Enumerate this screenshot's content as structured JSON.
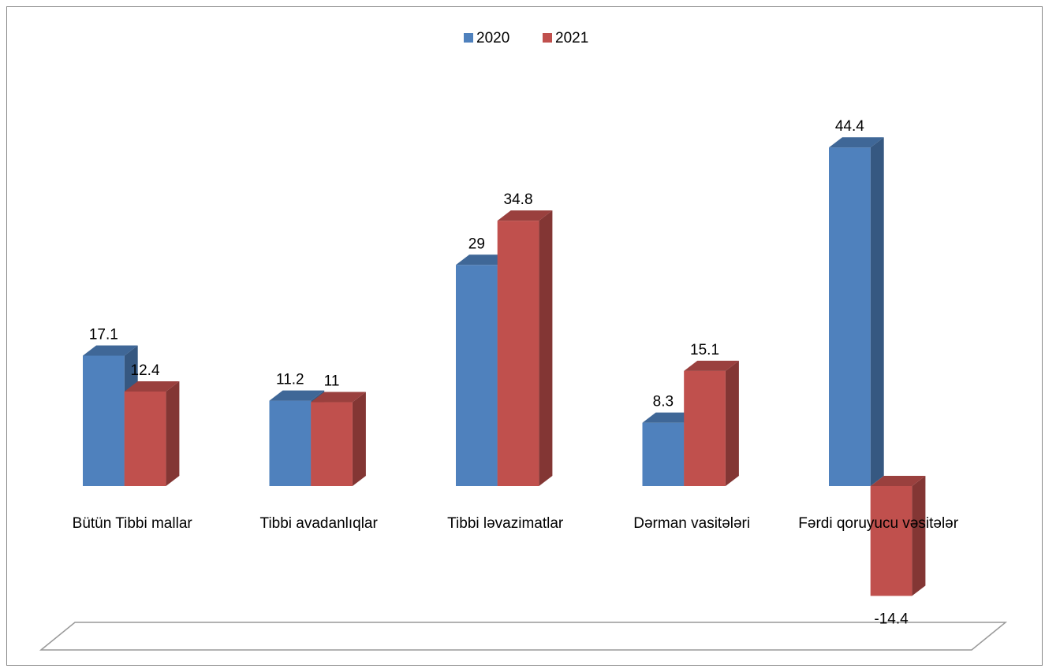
{
  "chart_data": {
    "type": "bar3d",
    "categories": [
      "Bütün Tibbi mallar",
      "Tibbi avadanlıqlar",
      "Tibbi ləvazimatlar",
      "Dərman vasitələri",
      "Fərdi qoruyucu vəsitələr"
    ],
    "series": [
      {
        "name": "2020",
        "color": "#4f81bd",
        "values": [
          17.1,
          11.2,
          29,
          8.3,
          44.4
        ]
      },
      {
        "name": "2021",
        "color": "#c0504d",
        "values": [
          12.4,
          11,
          34.8,
          15.1,
          -14.4
        ]
      }
    ],
    "legend": "top"
  }
}
